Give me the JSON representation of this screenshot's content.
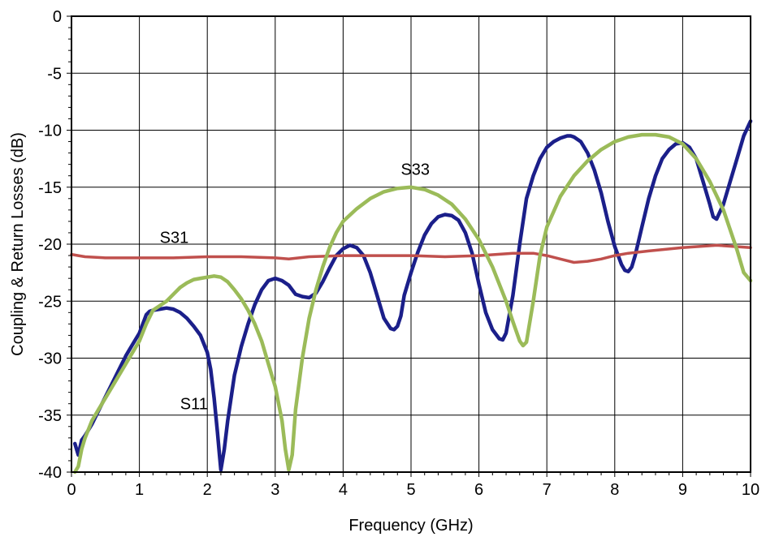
{
  "chart_data": {
    "type": "line",
    "title": "",
    "xlabel": "Frequency (GHz)",
    "ylabel": "Coupling & Return Losses (dB)",
    "xlim": [
      0,
      10
    ],
    "ylim": [
      -40,
      0
    ],
    "grid": true,
    "x_ticks": [
      "0",
      "1",
      "2",
      "3",
      "4",
      "5",
      "6",
      "7",
      "8",
      "9",
      "10"
    ],
    "y_ticks": [
      "0",
      "-5",
      "-10",
      "-15",
      "-20",
      "-25",
      "-30",
      "-35",
      "-40"
    ],
    "annotations": [
      {
        "text": "S33",
        "series": "S33",
        "x": 4.85,
        "y": -13.9
      },
      {
        "text": "S31",
        "series": "S31",
        "x": 1.3,
        "y": -19.9
      },
      {
        "text": "S11",
        "series": "S11",
        "x": 1.6,
        "y": -34.5
      }
    ],
    "series": [
      {
        "name": "S11",
        "color": "#1b1f8a",
        "x": [
          0.05,
          0.1,
          0.15,
          0.2,
          0.3,
          0.4,
          0.5,
          0.6,
          0.7,
          0.8,
          0.9,
          1.0,
          1.05,
          1.1,
          1.15,
          1.2,
          1.3,
          1.4,
          1.5,
          1.6,
          1.7,
          1.8,
          1.9,
          2.0,
          2.05,
          2.1,
          2.15,
          2.18,
          2.2,
          2.25,
          2.3,
          2.4,
          2.5,
          2.6,
          2.7,
          2.8,
          2.9,
          3.0,
          3.1,
          3.2,
          3.3,
          3.4,
          3.5,
          3.6,
          3.7,
          3.8,
          3.9,
          4.0,
          4.1,
          4.2,
          4.3,
          4.4,
          4.5,
          4.6,
          4.7,
          4.75,
          4.8,
          4.85,
          4.9,
          5.0,
          5.1,
          5.2,
          5.3,
          5.4,
          5.5,
          5.6,
          5.7,
          5.8,
          5.9,
          6.0,
          6.1,
          6.2,
          6.3,
          6.35,
          6.4,
          6.5,
          6.6,
          6.7,
          6.8,
          6.9,
          7.0,
          7.1,
          7.2,
          7.3,
          7.35,
          7.4,
          7.5,
          7.6,
          7.7,
          7.8,
          7.9,
          8.0,
          8.1,
          8.15,
          8.2,
          8.25,
          8.3,
          8.4,
          8.5,
          8.6,
          8.7,
          8.8,
          8.9,
          9.0,
          9.1,
          9.2,
          9.3,
          9.4,
          9.45,
          9.5,
          9.6,
          9.7,
          9.8,
          9.9,
          10.0
        ],
        "y": [
          -37.5,
          -38.5,
          -37.2,
          -36.8,
          -35.8,
          -34.6,
          -33.4,
          -32.2,
          -31.0,
          -29.8,
          -28.8,
          -27.8,
          -27.0,
          -26.2,
          -25.9,
          -25.8,
          -25.7,
          -25.6,
          -25.7,
          -26.0,
          -26.5,
          -27.2,
          -28.0,
          -29.5,
          -31.0,
          -33.5,
          -36.5,
          -38.5,
          -39.8,
          -38.0,
          -35.5,
          -31.5,
          -29.0,
          -27.0,
          -25.3,
          -24.0,
          -23.2,
          -23.0,
          -23.2,
          -23.6,
          -24.4,
          -24.6,
          -24.7,
          -24.3,
          -23.3,
          -22.1,
          -21.0,
          -20.4,
          -20.1,
          -20.3,
          -21.0,
          -22.5,
          -24.5,
          -26.5,
          -27.4,
          -27.5,
          -27.2,
          -26.3,
          -24.5,
          -22.5,
          -20.7,
          -19.2,
          -18.2,
          -17.6,
          -17.4,
          -17.5,
          -17.9,
          -19.0,
          -20.8,
          -23.5,
          -26.0,
          -27.5,
          -28.3,
          -28.4,
          -27.8,
          -24.5,
          -20.0,
          -16.0,
          -14.0,
          -12.5,
          -11.5,
          -11.0,
          -10.7,
          -10.5,
          -10.5,
          -10.6,
          -11.0,
          -12.0,
          -13.5,
          -15.5,
          -18.0,
          -20.2,
          -21.8,
          -22.3,
          -22.4,
          -22.0,
          -21.0,
          -18.5,
          -16.0,
          -14.0,
          -12.5,
          -11.7,
          -11.2,
          -11.1,
          -11.5,
          -12.5,
          -14.5,
          -16.5,
          -17.6,
          -17.8,
          -16.5,
          -14.5,
          -12.5,
          -10.5,
          -9.2
        ]
      },
      {
        "name": "S31",
        "color": "#c0504d",
        "x": [
          0.0,
          0.1,
          0.2,
          0.5,
          1.0,
          1.5,
          2.0,
          2.5,
          3.0,
          3.2,
          3.5,
          4.0,
          4.5,
          5.0,
          5.5,
          6.0,
          6.5,
          6.8,
          7.0,
          7.2,
          7.4,
          7.6,
          7.8,
          8.0,
          8.2,
          8.5,
          9.0,
          9.5,
          10.0
        ],
        "y": [
          -20.9,
          -21.0,
          -21.1,
          -21.2,
          -21.2,
          -21.2,
          -21.1,
          -21.1,
          -21.2,
          -21.3,
          -21.1,
          -21.0,
          -21.0,
          -21.0,
          -21.1,
          -21.0,
          -20.8,
          -20.8,
          -21.0,
          -21.3,
          -21.6,
          -21.5,
          -21.3,
          -21.0,
          -20.8,
          -20.6,
          -20.3,
          -20.1,
          -20.3
        ]
      },
      {
        "name": "S33",
        "color": "#9bbb59",
        "x": [
          0.05,
          0.1,
          0.15,
          0.2,
          0.3,
          0.4,
          0.5,
          0.6,
          0.7,
          0.8,
          0.9,
          1.0,
          1.1,
          1.2,
          1.3,
          1.4,
          1.5,
          1.6,
          1.7,
          1.8,
          1.9,
          2.0,
          2.1,
          2.2,
          2.3,
          2.4,
          2.5,
          2.6,
          2.7,
          2.8,
          2.9,
          3.0,
          3.1,
          3.15,
          3.2,
          3.25,
          3.3,
          3.4,
          3.5,
          3.6,
          3.7,
          3.8,
          3.9,
          4.0,
          4.2,
          4.4,
          4.6,
          4.8,
          5.0,
          5.2,
          5.4,
          5.6,
          5.8,
          6.0,
          6.2,
          6.4,
          6.5,
          6.6,
          6.65,
          6.7,
          6.8,
          6.9,
          7.0,
          7.2,
          7.4,
          7.6,
          7.8,
          8.0,
          8.2,
          8.4,
          8.6,
          8.8,
          9.0,
          9.2,
          9.4,
          9.6,
          9.8,
          9.9,
          10.0
        ],
        "y": [
          -40.0,
          -39.5,
          -38.0,
          -37.0,
          -35.5,
          -34.5,
          -33.5,
          -32.5,
          -31.5,
          -30.5,
          -29.5,
          -28.5,
          -27.0,
          -25.8,
          -25.4,
          -25.0,
          -24.4,
          -23.8,
          -23.4,
          -23.1,
          -23.0,
          -22.9,
          -22.8,
          -22.9,
          -23.3,
          -24.0,
          -24.8,
          -25.8,
          -27.0,
          -28.5,
          -30.5,
          -32.5,
          -35.5,
          -38.0,
          -39.8,
          -38.5,
          -34.5,
          -30.0,
          -26.5,
          -24.0,
          -22.0,
          -20.3,
          -19.0,
          -18.0,
          -16.9,
          -16.0,
          -15.4,
          -15.1,
          -15.0,
          -15.2,
          -15.7,
          -16.5,
          -17.8,
          -19.6,
          -22.0,
          -25.0,
          -26.8,
          -28.5,
          -28.9,
          -28.6,
          -25.0,
          -21.0,
          -18.5,
          -15.8,
          -14.0,
          -12.7,
          -11.7,
          -11.0,
          -10.6,
          -10.4,
          -10.4,
          -10.6,
          -11.2,
          -12.5,
          -14.5,
          -17.0,
          -20.5,
          -22.5,
          -23.2
        ]
      }
    ]
  }
}
